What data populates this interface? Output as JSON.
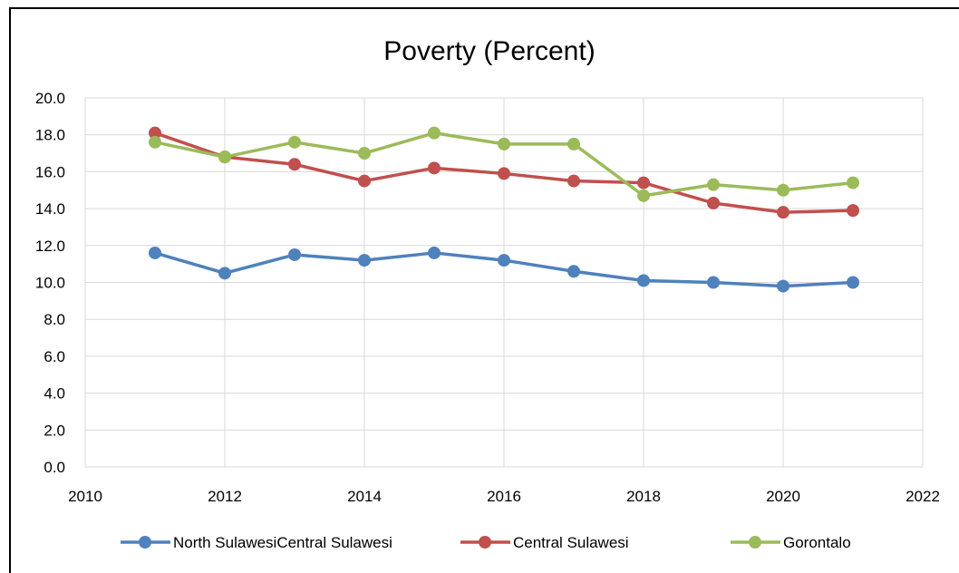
{
  "chart_data": {
    "type": "line",
    "title": "Poverty (Percent)",
    "xlabel": "",
    "ylabel": "",
    "xlim": [
      2010,
      2022
    ],
    "ylim": [
      0,
      20
    ],
    "x_ticks": [
      "2010",
      "2012",
      "2014",
      "2016",
      "2018",
      "2020",
      "2022"
    ],
    "x_tick_values": [
      2010,
      2012,
      2014,
      2016,
      2018,
      2020,
      2022
    ],
    "y_ticks": [
      "0.0",
      "2.0",
      "4.0",
      "6.0",
      "8.0",
      "10.0",
      "12.0",
      "14.0",
      "16.0",
      "18.0",
      "20.0"
    ],
    "y_tick_values": [
      0,
      2,
      4,
      6,
      8,
      10,
      12,
      14,
      16,
      18,
      20
    ],
    "grid": "horizontal and vertical",
    "legend_position": "bottom",
    "x": [
      2011,
      2012,
      2013,
      2014,
      2015,
      2016,
      2017,
      2018,
      2019,
      2020,
      2021
    ],
    "series": [
      {
        "name": "North SulawesiCentral Sulawesi",
        "color": "#4f81bd",
        "values": [
          11.6,
          10.5,
          11.5,
          11.2,
          11.6,
          11.2,
          10.6,
          10.1,
          10.0,
          9.8,
          10.0
        ]
      },
      {
        "name": "Central Sulawesi",
        "color": "#c0504d",
        "values": [
          18.1,
          16.8,
          16.4,
          15.5,
          16.2,
          15.9,
          15.5,
          15.4,
          14.3,
          13.8,
          13.9
        ]
      },
      {
        "name": "Gorontalo",
        "color": "#9bbb59",
        "values": [
          17.6,
          16.8,
          17.6,
          17.0,
          18.1,
          17.5,
          17.5,
          14.7,
          15.3,
          15.0,
          15.4
        ]
      }
    ]
  }
}
